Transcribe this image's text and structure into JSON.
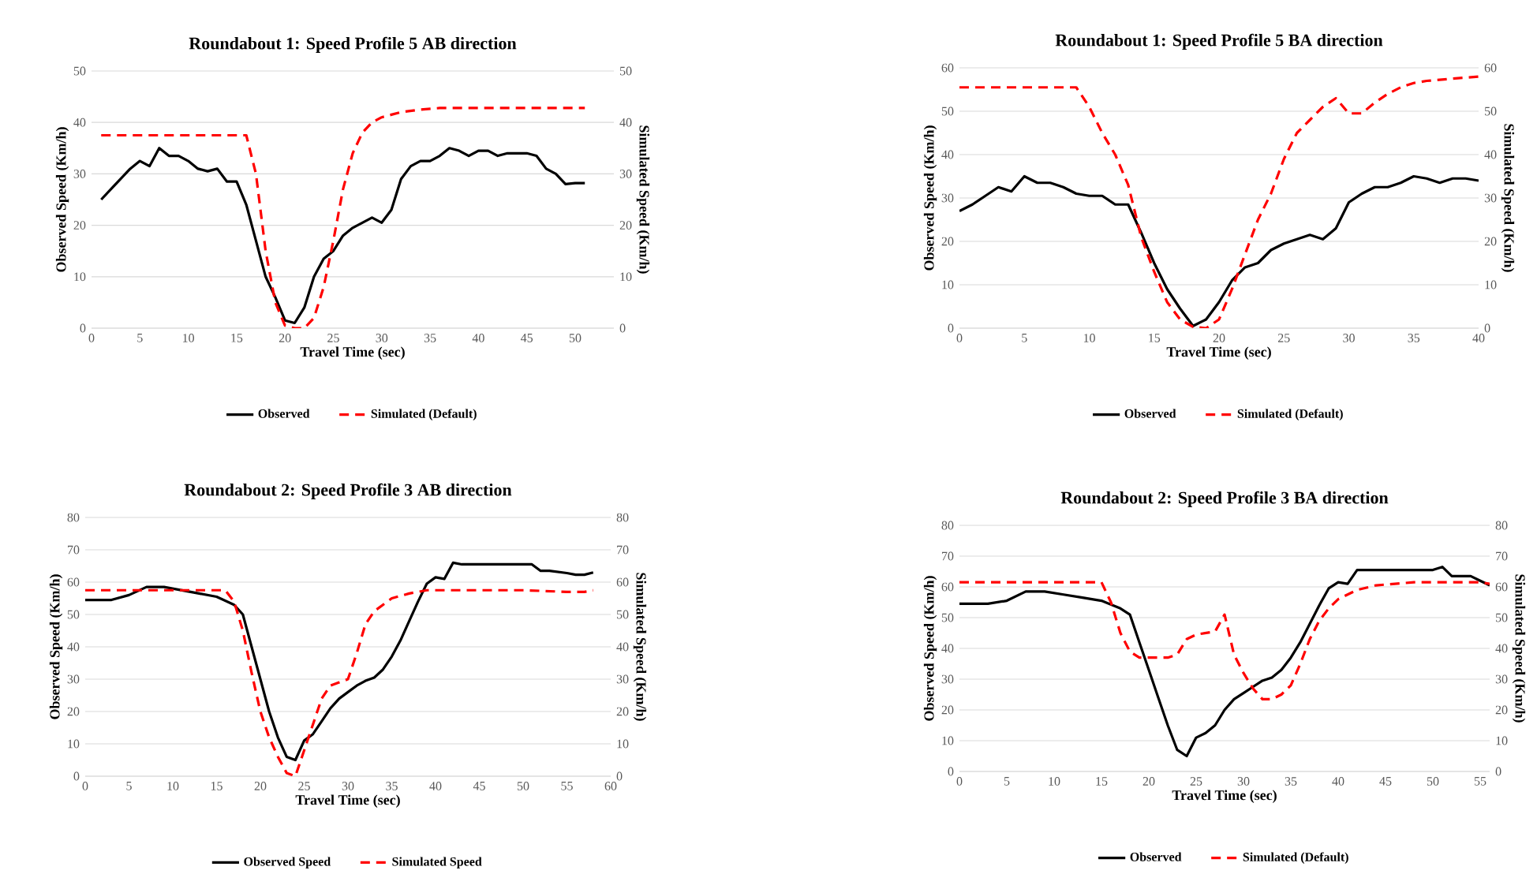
{
  "chart_data": [
    {
      "type": "line",
      "title": "Roundabout 1: Speed Profile 5 AB direction",
      "xlabel": "Travel Time (sec)",
      "ylabel": "Observed Speed (Km/h)",
      "y2label": "Simulated Speed (Km/h)",
      "xlim": [
        0,
        54
      ],
      "xticks": [
        0,
        5,
        10,
        15,
        20,
        25,
        30,
        35,
        40,
        45,
        50
      ],
      "ylim": [
        0,
        50
      ],
      "yticks": [
        0,
        10,
        20,
        30,
        40,
        50
      ],
      "y2lim": [
        0,
        50
      ],
      "y2ticks": [
        0,
        10,
        20,
        30,
        40,
        50
      ],
      "grid": "y",
      "legend": "bottom",
      "marker": "none",
      "series": [
        {
          "name": "Observed",
          "color": "#000000",
          "line_style": "solid",
          "x": [
            1,
            2,
            3,
            4,
            5,
            6,
            7,
            8,
            9,
            10,
            11,
            12,
            13,
            14,
            15,
            16,
            17,
            18,
            19,
            20,
            21,
            22,
            23,
            24,
            25,
            26,
            27,
            28,
            29,
            30,
            31,
            32,
            33,
            34,
            35,
            36,
            37,
            38,
            39,
            40,
            41,
            42,
            43,
            44,
            45,
            46,
            47,
            48,
            49,
            50,
            51
          ],
          "values": [
            25,
            27,
            29,
            31,
            32.5,
            31.5,
            35,
            33.5,
            33.5,
            32.5,
            31,
            30.5,
            31,
            28.5,
            28.5,
            24,
            17,
            10,
            6,
            1.5,
            1,
            4,
            10,
            13.5,
            15,
            18,
            19.5,
            20.5,
            21.5,
            20.5,
            23,
            29,
            31.5,
            32.5,
            32.5,
            33.5,
            35,
            34.5,
            33.5,
            34.5,
            34.5,
            33.5,
            34,
            34,
            34,
            33.5,
            31,
            30,
            28,
            28.2,
            28.2
          ]
        },
        {
          "name": "Simulated (Default)",
          "color": "#ff0000",
          "line_style": "dashed",
          "axis": "y2",
          "x": [
            1,
            16,
            17,
            18,
            19,
            20,
            21,
            22,
            23,
            24,
            25,
            26,
            27,
            28,
            29,
            30,
            31,
            32,
            34,
            36,
            51
          ],
          "values": [
            37.5,
            37.5,
            30,
            15,
            5,
            0.5,
            0,
            0,
            2,
            8,
            17,
            27,
            34,
            38,
            40,
            41,
            41.5,
            42,
            42.5,
            42.8,
            42.8
          ]
        }
      ]
    },
    {
      "type": "line",
      "title": "Roundabout 1: Speed Profile 5 BA direction",
      "xlabel": "Travel Time (sec)",
      "ylabel": "Observed Speed (Km/h)",
      "y2label": "Simulated Speed (Km/h)",
      "xlim": [
        0,
        40
      ],
      "xticks": [
        0,
        5,
        10,
        15,
        20,
        25,
        30,
        35,
        40
      ],
      "ylim": [
        0,
        60
      ],
      "yticks": [
        0,
        10,
        20,
        30,
        40,
        50,
        60
      ],
      "y2lim": [
        0,
        60
      ],
      "y2ticks": [
        0,
        10,
        20,
        30,
        40,
        50,
        60
      ],
      "grid": "y",
      "legend": "bottom",
      "marker": "none",
      "series": [
        {
          "name": "Observed",
          "color": "#000000",
          "line_style": "solid",
          "x": [
            0,
            1,
            2,
            3,
            4,
            5,
            6,
            7,
            8,
            9,
            10,
            11,
            12,
            13,
            14,
            15,
            16,
            17,
            18,
            19,
            20,
            21,
            22,
            23,
            24,
            25,
            26,
            27,
            28,
            29,
            30,
            31,
            32,
            33,
            34,
            35,
            36,
            37,
            38,
            39,
            40
          ],
          "values": [
            27,
            28.5,
            30.5,
            32.5,
            31.5,
            35,
            33.5,
            33.5,
            32.5,
            31,
            30.5,
            30.5,
            28.5,
            28.5,
            22,
            15,
            9,
            4.5,
            0.5,
            2,
            6,
            11,
            14,
            15,
            18,
            19.5,
            20.5,
            21.5,
            20.5,
            23,
            29,
            31,
            32.5,
            32.5,
            33.5,
            35,
            34.5,
            33.5,
            34.5,
            34.5,
            34
          ]
        },
        {
          "name": "Simulated (Default)",
          "color": "#ff0000",
          "line_style": "dashed",
          "axis": "y2",
          "x": [
            0,
            9,
            10,
            11,
            12,
            13,
            14,
            15,
            16,
            17,
            18,
            19,
            20,
            21,
            22,
            23,
            24,
            25,
            26,
            27,
            28,
            29,
            30,
            31,
            32,
            33,
            34,
            35,
            36,
            38,
            40
          ],
          "values": [
            55.5,
            55.5,
            51,
            45,
            40,
            33,
            21,
            13,
            6,
            2,
            0.3,
            0,
            2,
            9,
            17,
            25,
            31,
            39,
            45,
            48,
            51,
            53,
            49.5,
            49.5,
            52,
            54,
            55.5,
            56.5,
            57,
            57.5,
            58
          ]
        }
      ]
    },
    {
      "type": "line",
      "title": "Roundabout 2: Speed Profile 3 AB direction",
      "xlabel": "Travel Time (sec)",
      "ylabel": "Observed Speed (Km/h)",
      "y2label": "Simulated Speed (Km/h)",
      "xlim": [
        0,
        60
      ],
      "xticks": [
        0,
        5,
        10,
        15,
        20,
        25,
        30,
        35,
        40,
        45,
        50,
        55,
        60
      ],
      "ylim": [
        0,
        80
      ],
      "yticks": [
        0,
        10,
        20,
        30,
        40,
        50,
        60,
        70,
        80
      ],
      "y2lim": [
        0,
        80
      ],
      "y2ticks": [
        0,
        10,
        20,
        30,
        40,
        50,
        60,
        70,
        80
      ],
      "grid": "y",
      "legend": "bottom",
      "marker": "none",
      "series": [
        {
          "name": "Observed Speed",
          "color": "#000000",
          "line_style": "solid",
          "x": [
            0,
            3,
            5,
            7,
            9,
            11,
            13,
            15,
            17,
            18,
            19,
            20,
            21,
            22,
            23,
            24,
            25,
            26,
            27,
            28,
            29,
            30,
            31,
            32,
            33,
            34,
            35,
            36,
            37,
            38,
            39,
            40,
            41,
            42,
            43,
            50,
            51,
            52,
            53,
            55,
            56,
            57,
            58
          ],
          "values": [
            54.5,
            54.5,
            56,
            58.5,
            58.5,
            57.5,
            56.5,
            55.5,
            53,
            50,
            40,
            30,
            20,
            12,
            6,
            5,
            11,
            13,
            17,
            21,
            24,
            26,
            28,
            29.5,
            30.5,
            33,
            37,
            42,
            48,
            54,
            59.5,
            61.5,
            61,
            66,
            65.5,
            65.5,
            65.5,
            63.5,
            63.5,
            62.8,
            62.3,
            62.3,
            63
          ]
        },
        {
          "name": "Simulated Speed",
          "color": "#ff0000",
          "line_style": "dashed",
          "axis": "y2",
          "x": [
            0,
            16,
            17,
            18,
            19,
            20,
            21,
            22,
            23,
            24,
            25,
            26,
            27,
            28,
            29,
            30,
            31,
            32,
            33,
            34,
            35,
            37,
            39,
            50,
            55,
            57,
            58
          ],
          "values": [
            57.5,
            57.5,
            54,
            45,
            32,
            20,
            12,
            6,
            1,
            0,
            8,
            16,
            24,
            28,
            29,
            30,
            38,
            47,
            51,
            53,
            55,
            56.5,
            57.5,
            57.5,
            57,
            57,
            57.5
          ]
        }
      ]
    },
    {
      "type": "line",
      "title": "Roundabout 2: Speed Profile 3 BA direction",
      "xlabel": "Travel Time (sec)",
      "ylabel": "Observed Speed (Km/h)",
      "y2label": "Simulated Speed (Km/h)",
      "xlim": [
        0,
        56
      ],
      "xticks": [
        0,
        5,
        10,
        15,
        20,
        25,
        30,
        35,
        40,
        45,
        50,
        55
      ],
      "ylim": [
        0,
        80
      ],
      "yticks": [
        0,
        10,
        20,
        30,
        40,
        50,
        60,
        70,
        80
      ],
      "y2lim": [
        0,
        80
      ],
      "y2ticks": [
        0,
        10,
        20,
        30,
        40,
        50,
        60,
        70,
        80
      ],
      "grid": "y",
      "legend": "bottom",
      "marker": "none",
      "series": [
        {
          "name": "Observed",
          "color": "#000000",
          "line_style": "solid",
          "x": [
            0,
            3,
            5,
            7,
            9,
            11,
            13,
            15,
            17,
            18,
            19,
            20,
            21,
            22,
            23,
            24,
            25,
            26,
            27,
            28,
            29,
            30,
            31,
            32,
            33,
            34,
            35,
            36,
            37,
            38,
            39,
            40,
            41,
            42,
            49,
            50,
            51,
            52,
            54,
            55,
            56
          ],
          "values": [
            54.5,
            54.5,
            55.5,
            58.5,
            58.5,
            57.5,
            56.5,
            55.5,
            53,
            51,
            42,
            33,
            24,
            15,
            7,
            5,
            11,
            12.5,
            15,
            20,
            23.5,
            25.5,
            27.5,
            29.5,
            30.5,
            33,
            37,
            42,
            48,
            54,
            59.5,
            61.5,
            61,
            65.5,
            65.5,
            65.5,
            66.5,
            63.5,
            63.5,
            62,
            60.5
          ]
        },
        {
          "name": "Simulated (Default)",
          "color": "#ff0000",
          "line_style": "dashed",
          "axis": "y2",
          "x": [
            0,
            15,
            16,
            17,
            18,
            19,
            22,
            23,
            24,
            25,
            27,
            28,
            29,
            30,
            31,
            32,
            33,
            34,
            35,
            36,
            37,
            38,
            39,
            40,
            42,
            44,
            46,
            48,
            55,
            56
          ],
          "values": [
            61.5,
            61.5,
            55,
            45,
            39,
            37,
            37,
            38,
            43,
            44.5,
            45.5,
            51,
            38,
            32,
            27,
            23.5,
            23.5,
            25,
            28,
            35,
            43,
            49,
            53,
            56,
            59,
            60.5,
            61,
            61.5,
            61.5,
            61
          ]
        }
      ]
    }
  ]
}
